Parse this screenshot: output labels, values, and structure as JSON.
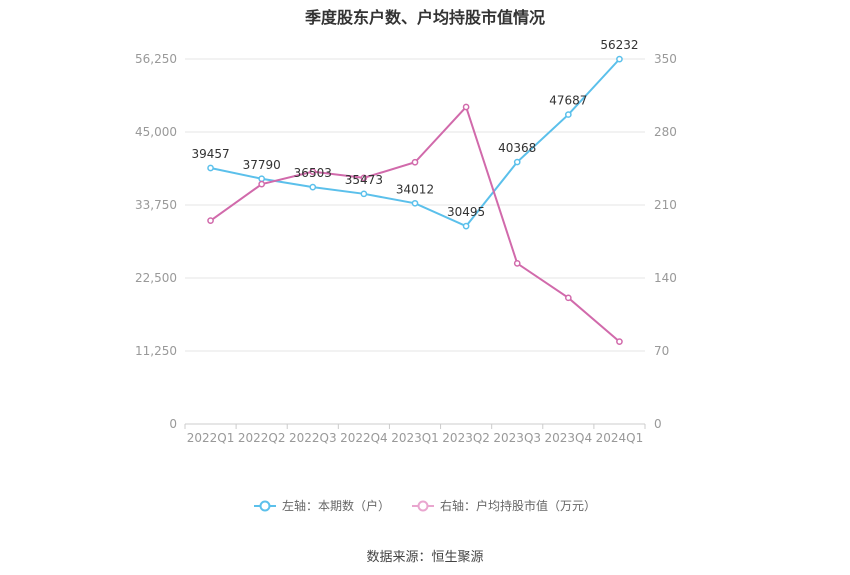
{
  "chart_data": {
    "type": "line",
    "title": "季度股东户数、户均持股市值情况",
    "categories": [
      "2022Q1",
      "2022Q2",
      "2022Q3",
      "2022Q4",
      "2023Q1",
      "2023Q2",
      "2023Q3",
      "2023Q4",
      "2024Q1"
    ],
    "series": [
      {
        "name": "左轴：本期数（户）",
        "axis": "left",
        "color": "#5bc0eb",
        "values": [
          39457,
          37790,
          36503,
          35473,
          34012,
          30495,
          40368,
          47687,
          56232
        ],
        "labels": [
          "39457",
          "37790",
          "36503",
          "35473",
          "34012",
          "30495",
          "40368",
          "47687",
          "56232"
        ]
      },
      {
        "name": "右轴：户均持股市值（万元）",
        "axis": "right",
        "color": "#d16aab",
        "values": [
          195,
          230,
          242,
          236,
          251,
          304,
          154,
          121,
          79
        ]
      }
    ],
    "left_axis": {
      "ylim": [
        0,
        56250
      ],
      "ticks": [
        "0",
        "11,250",
        "22,500",
        "33,750",
        "45,000",
        "56,250"
      ],
      "tick_values": [
        0,
        11250,
        22500,
        33750,
        45000,
        56250
      ]
    },
    "right_axis": {
      "ylim": [
        0,
        350
      ],
      "ticks": [
        "0",
        "70",
        "140",
        "210",
        "280",
        "350"
      ],
      "tick_values": [
        0,
        70,
        140,
        210,
        280,
        350
      ]
    },
    "grid": true,
    "legend_position": "bottom"
  },
  "source": "数据来源：恒生聚源"
}
